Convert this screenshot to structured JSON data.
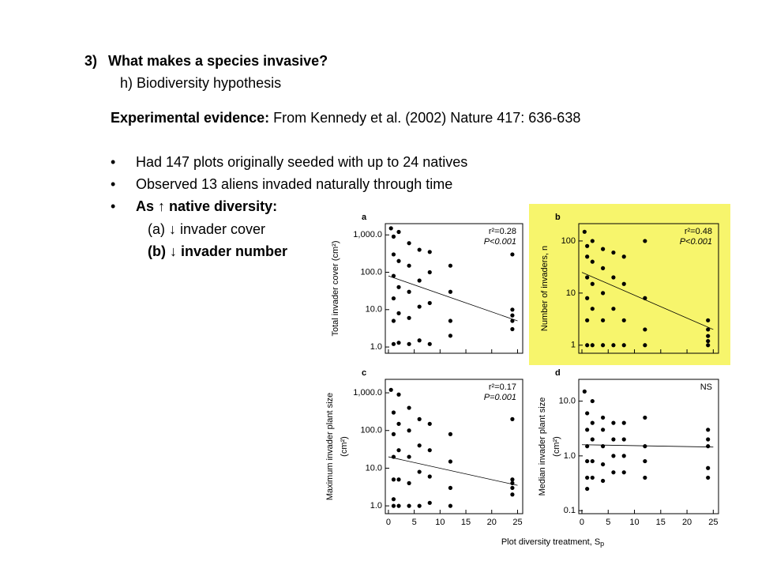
{
  "slide": {
    "heading": {
      "number": "3)",
      "title": "What makes a species invasive?",
      "subtitle": "h) Biodiversity hypothesis"
    },
    "lead": {
      "label": "Experimental evidence:",
      "text": "From Kennedy et al. (2002) Nature 417: 636-638"
    },
    "bullets": [
      "Had 147 plots originally seeded with up to 24 natives",
      "Observed 13 aliens invaded naturally through time",
      "As ↑ native diversity:"
    ],
    "sub_items": [
      "(a) ↓ invader cover",
      "(b) ↓ invader number"
    ],
    "figure": {
      "x_label": "Plot diversity treatment, S",
      "x_label_subscript": "p"
    }
  },
  "chart_data": [
    {
      "type": "scatter",
      "letter": "a",
      "y_label": [
        "Total invader cover (cm²)"
      ],
      "stats": [
        "r²=0.28",
        "P<0.001"
      ],
      "log_y": true,
      "highlight": null,
      "xtick_labels": false,
      "xlim": [
        -0.6,
        26
      ],
      "xticks": [
        0,
        5,
        10,
        15,
        20,
        25
      ],
      "ylim": [
        0.68,
        2000
      ],
      "yticks": [
        {
          "value": 1,
          "label": "1.0"
        },
        {
          "value": 10,
          "label": "10.0"
        },
        {
          "value": 100,
          "label": "100.0"
        },
        {
          "value": 1000,
          "label": "1,000.0"
        }
      ],
      "x": [
        0.5,
        1,
        1,
        1,
        1,
        1,
        1,
        2,
        2,
        2,
        2,
        2,
        4,
        4,
        4,
        4,
        4,
        6,
        6,
        6,
        6,
        8,
        8,
        8,
        8,
        12,
        12,
        12,
        12,
        24,
        24,
        24,
        24,
        24
      ],
      "values": [
        1500,
        900,
        300,
        80,
        20,
        5,
        1.2,
        1200,
        200,
        40,
        8,
        1.3,
        600,
        150,
        30,
        6,
        1.2,
        400,
        60,
        12,
        1.5,
        350,
        100,
        15,
        1.2,
        150,
        30,
        5,
        2,
        300,
        10,
        7,
        5,
        3
      ],
      "fit": {
        "x": [
          0,
          25
        ],
        "y": [
          80,
          5
        ]
      }
    },
    {
      "type": "scatter",
      "letter": "b",
      "y_label": [
        "Number of invaders, n"
      ],
      "stats": [
        "r²=0.48",
        "P<0.001"
      ],
      "log_y": true,
      "highlight": "#f7f56c",
      "xtick_labels": false,
      "xlim": [
        -0.6,
        26
      ],
      "xticks": [
        0,
        5,
        10,
        15,
        20,
        25
      ],
      "ylim": [
        0.7,
        215
      ],
      "yticks": [
        1,
        10,
        100
      ],
      "x": [
        0.5,
        1,
        1,
        1,
        1,
        1,
        1,
        2,
        2,
        2,
        2,
        2,
        4,
        4,
        4,
        4,
        4,
        6,
        6,
        6,
        6,
        8,
        8,
        8,
        8,
        12,
        12,
        12,
        12,
        24,
        24,
        24,
        24,
        24
      ],
      "values": [
        150,
        80,
        50,
        20,
        8,
        3,
        1,
        100,
        40,
        15,
        5,
        1,
        70,
        30,
        10,
        3,
        1,
        60,
        20,
        5,
        1,
        50,
        15,
        3,
        1,
        100,
        8,
        2,
        1,
        3,
        2,
        1.5,
        1,
        1.2
      ],
      "fit": {
        "x": [
          0,
          25
        ],
        "y": [
          25,
          2
        ]
      }
    },
    {
      "type": "scatter",
      "letter": "c",
      "y_label": [
        "Maximum invader plant size",
        "(cm²)"
      ],
      "stats": [
        "r²=0.17",
        "P=0.001"
      ],
      "log_y": true,
      "highlight": null,
      "xtick_labels": true,
      "xlim": [
        -0.6,
        26
      ],
      "xticks": [
        0,
        5,
        10,
        15,
        20,
        25
      ],
      "ylim": [
        0.62,
        2280
      ],
      "yticks": [
        {
          "value": 1,
          "label": "1.0"
        },
        {
          "value": 10,
          "label": "10.0"
        },
        {
          "value": 100,
          "label": "100.0"
        },
        {
          "value": 1000,
          "label": "1,000.0"
        }
      ],
      "x": [
        0.5,
        1,
        1,
        1,
        1,
        1,
        1,
        2,
        2,
        2,
        2,
        2,
        4,
        4,
        4,
        4,
        4,
        6,
        6,
        6,
        6,
        8,
        8,
        8,
        8,
        12,
        12,
        12,
        12,
        24,
        24,
        24,
        24,
        24
      ],
      "values": [
        1200,
        300,
        80,
        20,
        5,
        1.5,
        1,
        900,
        150,
        30,
        5,
        1,
        400,
        100,
        20,
        4,
        1,
        200,
        40,
        8,
        1,
        150,
        30,
        6,
        1.2,
        80,
        15,
        3,
        1,
        200,
        5,
        4,
        3,
        2
      ],
      "fit": {
        "x": [
          0,
          25
        ],
        "y": [
          20,
          3.5
        ]
      }
    },
    {
      "type": "scatter",
      "letter": "d",
      "y_label": [
        "Median invader plant size",
        "(cm²)"
      ],
      "stats": [
        "NS"
      ],
      "log_y": true,
      "highlight": null,
      "xtick_labels": true,
      "xlim": [
        -0.6,
        26
      ],
      "xticks": [
        0,
        5,
        10,
        15,
        20,
        25
      ],
      "ylim": [
        0.088,
        25
      ],
      "yticks": [
        0.1,
        {
          "value": 1,
          "label": "1.0"
        },
        {
          "value": 10,
          "label": "10.0"
        }
      ],
      "x": [
        0.5,
        1,
        1,
        1,
        1,
        1,
        1,
        2,
        2,
        2,
        2,
        2,
        4,
        4,
        4,
        4,
        4,
        6,
        6,
        6,
        6,
        8,
        8,
        8,
        8,
        12,
        12,
        12,
        12,
        24,
        24,
        24,
        24,
        24
      ],
      "values": [
        15,
        6,
        3,
        1.5,
        0.8,
        0.4,
        0.25,
        10,
        4,
        2,
        0.8,
        0.4,
        5,
        3,
        1.5,
        0.7,
        0.35,
        4,
        2,
        1,
        0.5,
        4,
        2,
        1,
        0.5,
        5,
        1.5,
        0.8,
        0.4,
        3,
        2,
        1.5,
        0.6,
        0.4
      ],
      "fit": {
        "x": [
          0,
          25
        ],
        "y": [
          1.6,
          1.45
        ]
      }
    }
  ]
}
